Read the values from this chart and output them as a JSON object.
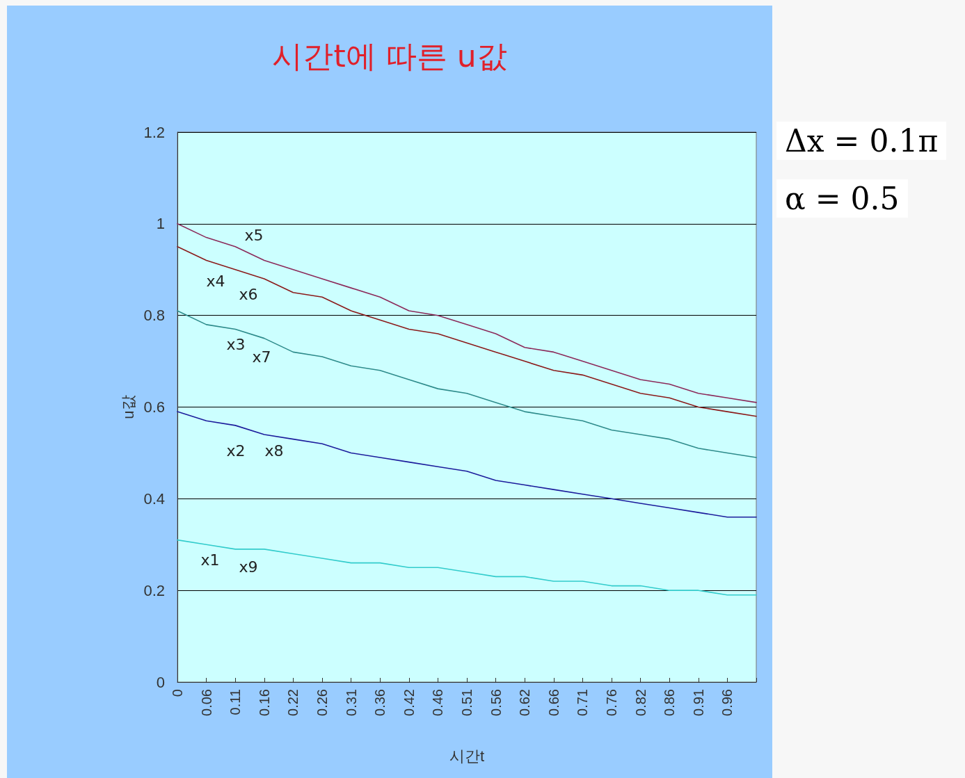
{
  "chart_data": {
    "type": "line",
    "title": "시간t에 따른 u값",
    "xlabel": "시간t",
    "ylabel": "u값",
    "categories": [
      "0",
      "0.06",
      "0.11",
      "0.16",
      "0.22",
      "0.26",
      "0.31",
      "0.36",
      "0.42",
      "0.46",
      "0.51",
      "0.56",
      "0.62",
      "0.66",
      "0.71",
      "0.76",
      "0.82",
      "0.86",
      "0.91",
      "0.96",
      null
    ],
    "series": [
      {
        "color": "#8b2a5a",
        "values": [
          1.0,
          0.97,
          0.95,
          0.92,
          0.9,
          0.88,
          0.86,
          0.84,
          0.81,
          0.8,
          0.78,
          0.76,
          0.73,
          0.72,
          0.7,
          0.68,
          0.66,
          0.65,
          0.63,
          0.62,
          0.61
        ]
      },
      {
        "color": "#8b1a1a",
        "values": [
          0.95,
          0.92,
          0.9,
          0.88,
          0.85,
          0.84,
          0.81,
          0.79,
          0.77,
          0.76,
          0.74,
          0.72,
          0.7,
          0.68,
          0.67,
          0.65,
          0.63,
          0.62,
          0.6,
          0.59,
          0.58
        ]
      },
      {
        "color": "#2e8b8b",
        "values": [
          0.81,
          0.78,
          0.77,
          0.75,
          0.72,
          0.71,
          0.69,
          0.68,
          0.66,
          0.64,
          0.63,
          0.61,
          0.59,
          0.58,
          0.57,
          0.55,
          0.54,
          0.53,
          0.51,
          0.5,
          0.49
        ]
      },
      {
        "color": "#1c1c9c",
        "values": [
          0.59,
          0.57,
          0.56,
          0.54,
          0.53,
          0.52,
          0.5,
          0.49,
          0.48,
          0.47,
          0.46,
          0.44,
          0.43,
          0.42,
          0.41,
          0.4,
          0.39,
          0.38,
          0.37,
          0.36,
          0.36
        ]
      },
      {
        "color": "#33cccc",
        "values": [
          0.31,
          0.3,
          0.29,
          0.29,
          0.28,
          0.27,
          0.26,
          0.26,
          0.25,
          0.25,
          0.24,
          0.23,
          0.23,
          0.22,
          0.22,
          0.21,
          0.21,
          0.2,
          0.2,
          0.19,
          0.19
        ]
      }
    ],
    "ylim": [
      0,
      1.2
    ],
    "yticks": [
      0,
      0.2,
      0.4,
      0.6,
      0.8,
      1,
      1.2
    ],
    "grid": "y",
    "marker": "none",
    "line_style": "solid",
    "annotations": [
      "x5",
      "x4",
      "x6",
      "x3",
      "x7",
      "x2",
      "x8",
      "x1",
      "x9",
      "Δx = 0.1π",
      "α = 0.5"
    ]
  }
}
